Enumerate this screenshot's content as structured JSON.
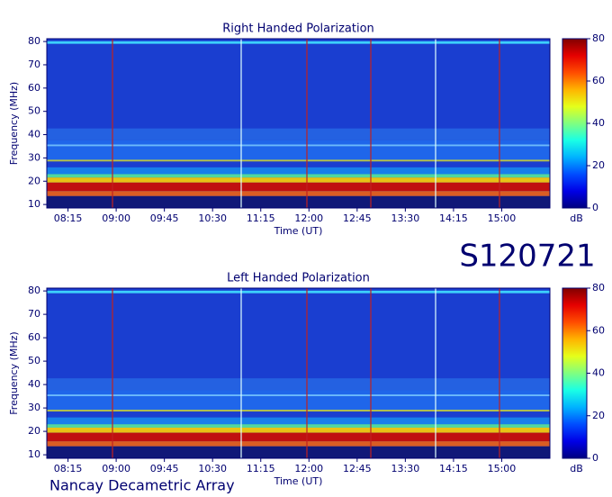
{
  "chart_data": [
    {
      "type": "spectrogram",
      "title": "Right Handed Polarization",
      "x_label": "Time (UT)",
      "y_label": "Frequency (MHz)",
      "xlim": [
        7.92,
        15.75
      ],
      "xticks": [
        {
          "value": 8.25,
          "label": "08:15"
        },
        {
          "value": 9,
          "label": "09:00"
        },
        {
          "value": 9.75,
          "label": "09:45"
        },
        {
          "value": 10.5,
          "label": "10:30"
        },
        {
          "value": 11.25,
          "label": "11:15"
        },
        {
          "value": 12,
          "label": "12:00"
        },
        {
          "value": 12.75,
          "label": "12:45"
        },
        {
          "value": 13.5,
          "label": "13:30"
        },
        {
          "value": 14.25,
          "label": "14:15"
        },
        {
          "value": 15,
          "label": "15:00"
        }
      ],
      "ylim": [
        8.5,
        81.2
      ],
      "yticks": [
        10,
        20,
        30,
        40,
        50,
        60,
        70,
        80
      ],
      "colorbar": {
        "lim": [
          0,
          80
        ],
        "ticks": [
          0,
          20,
          40,
          60,
          80
        ],
        "label": "dB",
        "colormap": "jet"
      }
    },
    {
      "type": "spectrogram",
      "title": "Left Handed Polarization",
      "x_label": "Time (UT)",
      "y_label": "Frequency (MHz)",
      "xlim": [
        7.92,
        15.75
      ],
      "xticks": [
        {
          "value": 8.25,
          "label": "08:15"
        },
        {
          "value": 9,
          "label": "09:00"
        },
        {
          "value": 9.75,
          "label": "09:45"
        },
        {
          "value": 10.5,
          "label": "10:30"
        },
        {
          "value": 11.25,
          "label": "11:15"
        },
        {
          "value": 12,
          "label": "12:00"
        },
        {
          "value": 12.75,
          "label": "12:45"
        },
        {
          "value": 13.5,
          "label": "13:30"
        },
        {
          "value": 14.25,
          "label": "14:15"
        },
        {
          "value": 15,
          "label": "15:00"
        }
      ],
      "ylim": [
        8.5,
        81.2
      ],
      "yticks": [
        10,
        20,
        30,
        40,
        50,
        60,
        70,
        80
      ],
      "colorbar": {
        "lim": [
          0,
          80
        ],
        "ticks": [
          0,
          20,
          40,
          60,
          80
        ],
        "label": "dB",
        "colormap": "jet"
      }
    }
  ],
  "station_id": "S120721",
  "footer": "Nancay Decametric Array"
}
